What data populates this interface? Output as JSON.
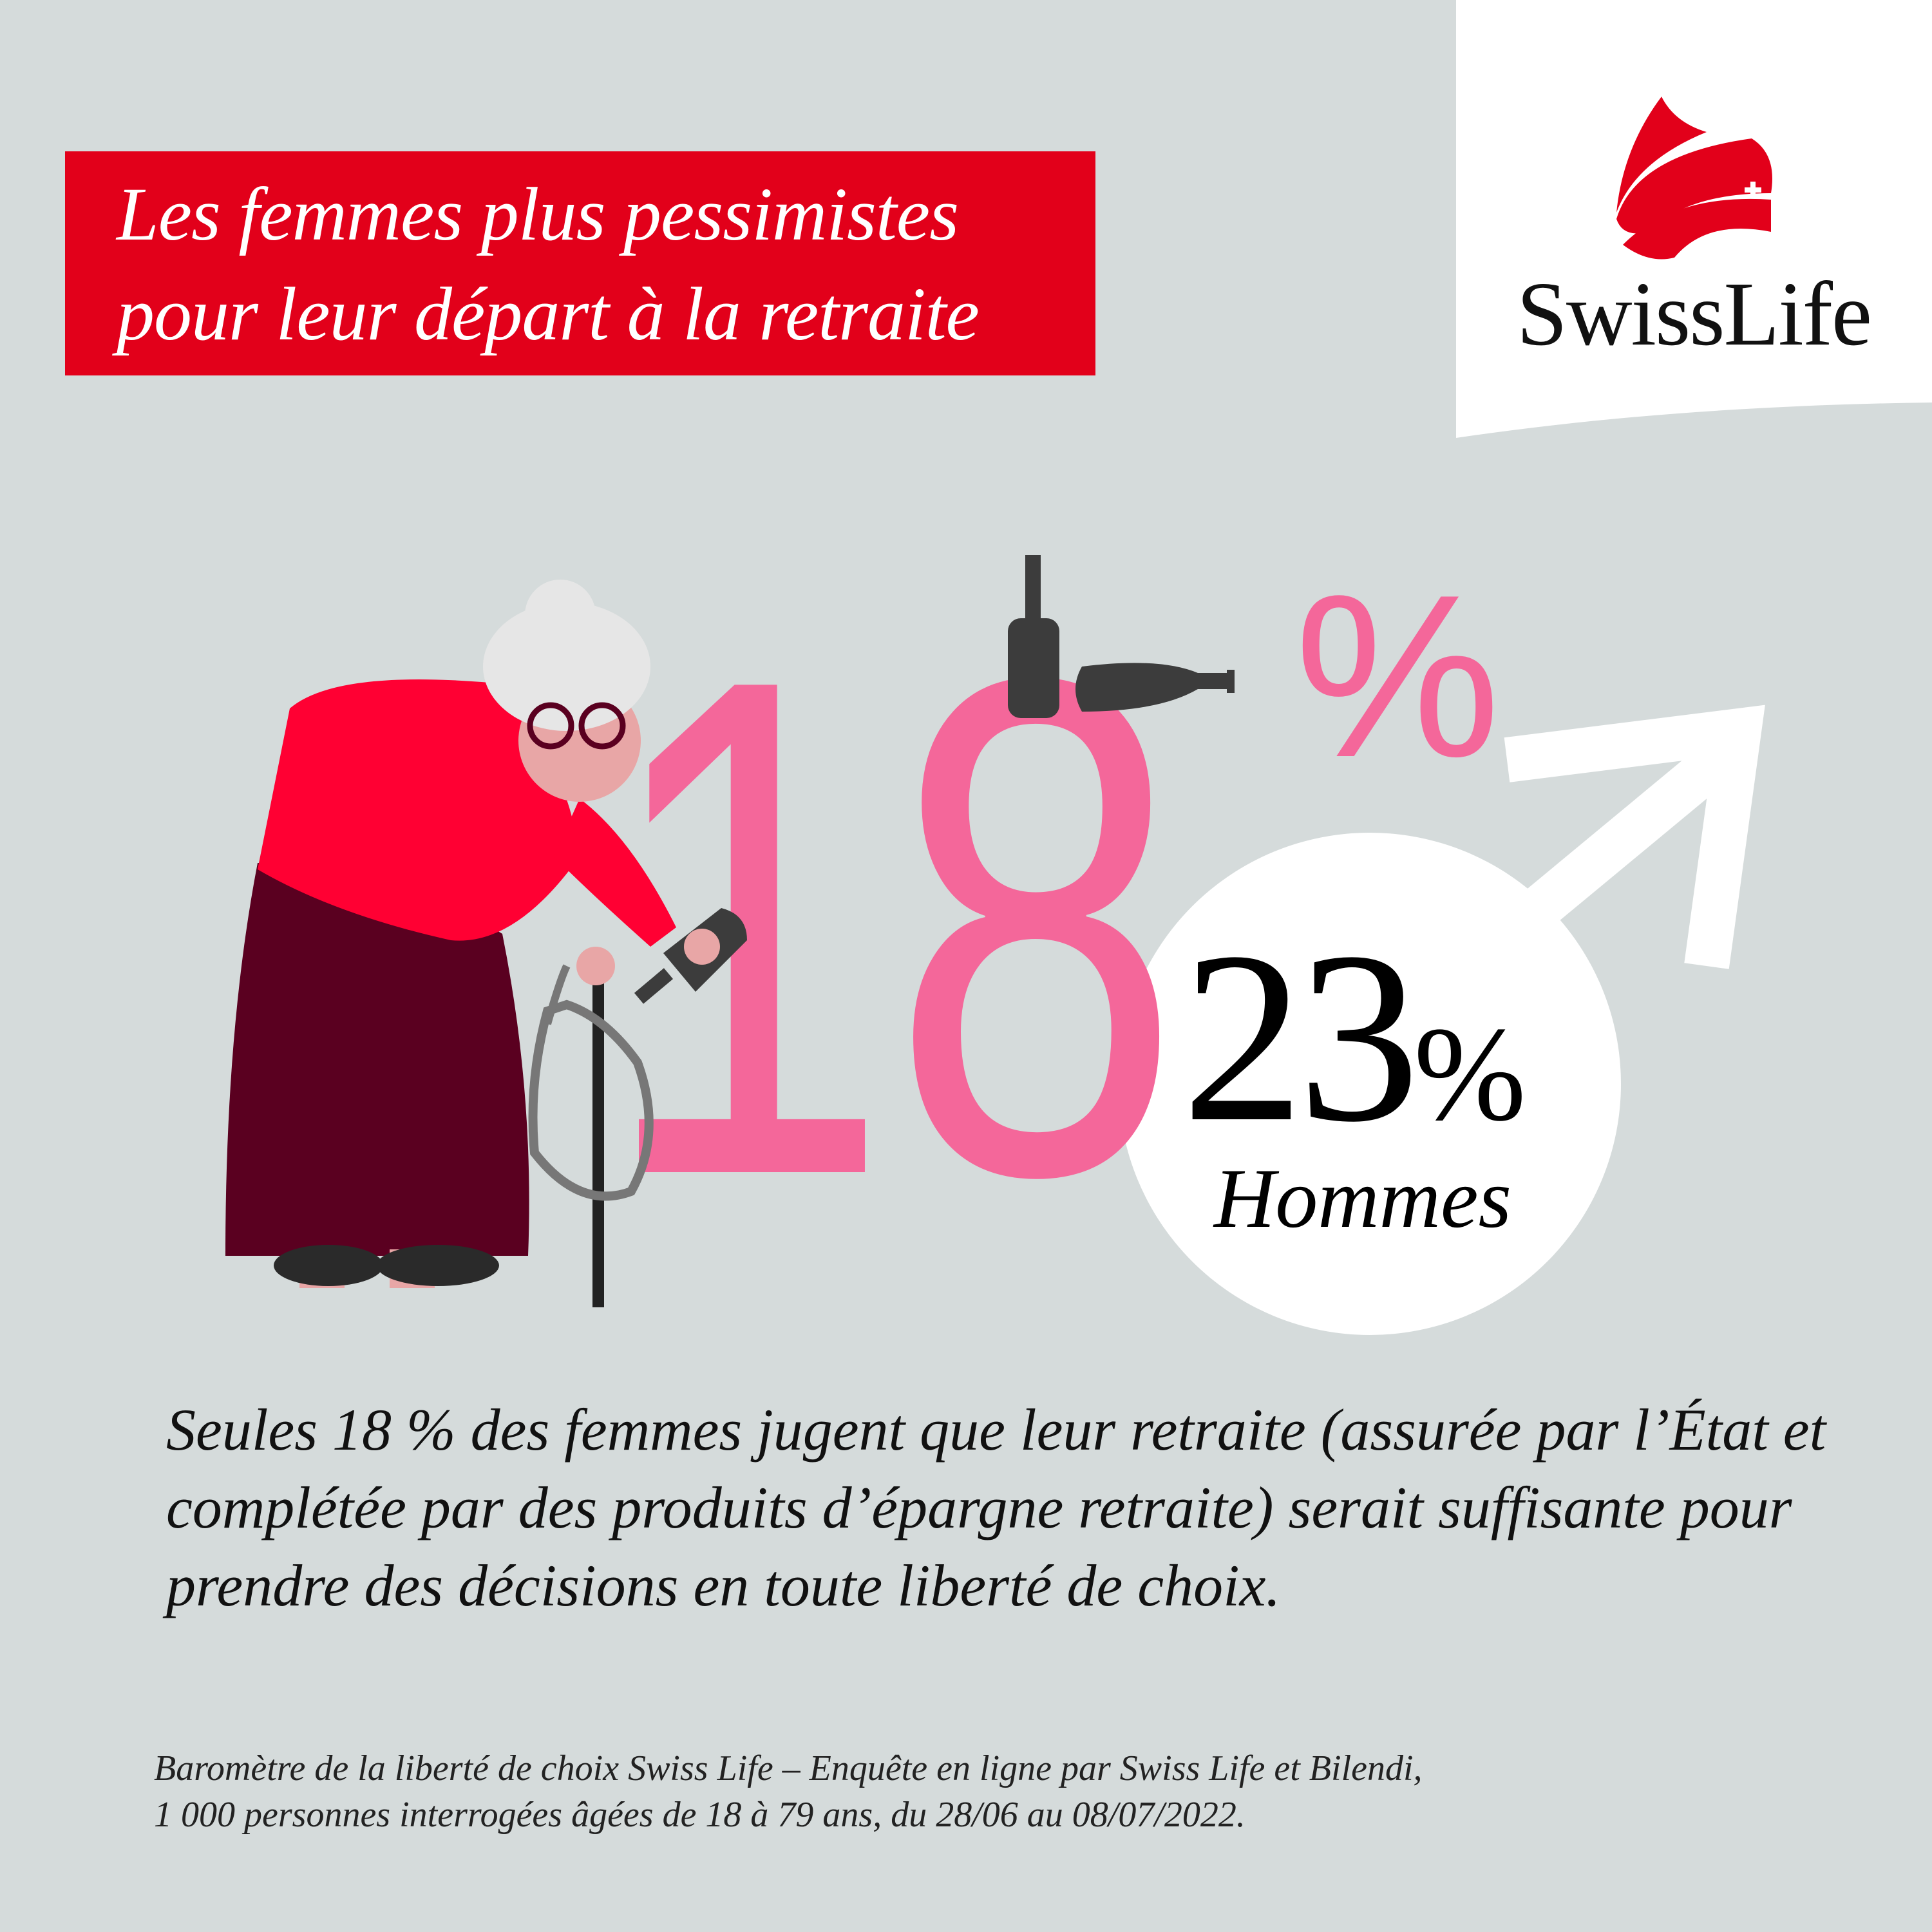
{
  "header": {
    "title_line1": "Les femmes plus pessimistes",
    "title_line2": "pour leur départ à la retraite"
  },
  "logo": {
    "brand": "SwissLife",
    "icon": "swiss-life-flag-logo"
  },
  "stats": {
    "women_value": "18",
    "women_percent_sign": "%",
    "men_value": "23",
    "men_percent_sign": "%",
    "men_label": "Hommes",
    "men_icon": "male-symbol-icon",
    "women_percent": 18,
    "men_percent": 23
  },
  "body": {
    "text": "Seules 18 % des femmes jugent que leur retraite (assurée par l’État et complétée par des produits d’épargne retraite) serait suffisante pour prendre des décisions en toute liberté de choix."
  },
  "source": {
    "line1": "Baromètre de la liberté de choix Swiss Life – Enquête en ligne par Swiss Life et Bilendi,",
    "line2": "1 000 personnes interrogées âgées de 18 à 79 ans, du 28/06 au 08/07/2022."
  },
  "colors": {
    "brand_red": "#e2001a",
    "pink": "#f4679a",
    "background": "#d5dbdb",
    "bottle": "#3c3c3c",
    "skirt": "#5a0020"
  }
}
